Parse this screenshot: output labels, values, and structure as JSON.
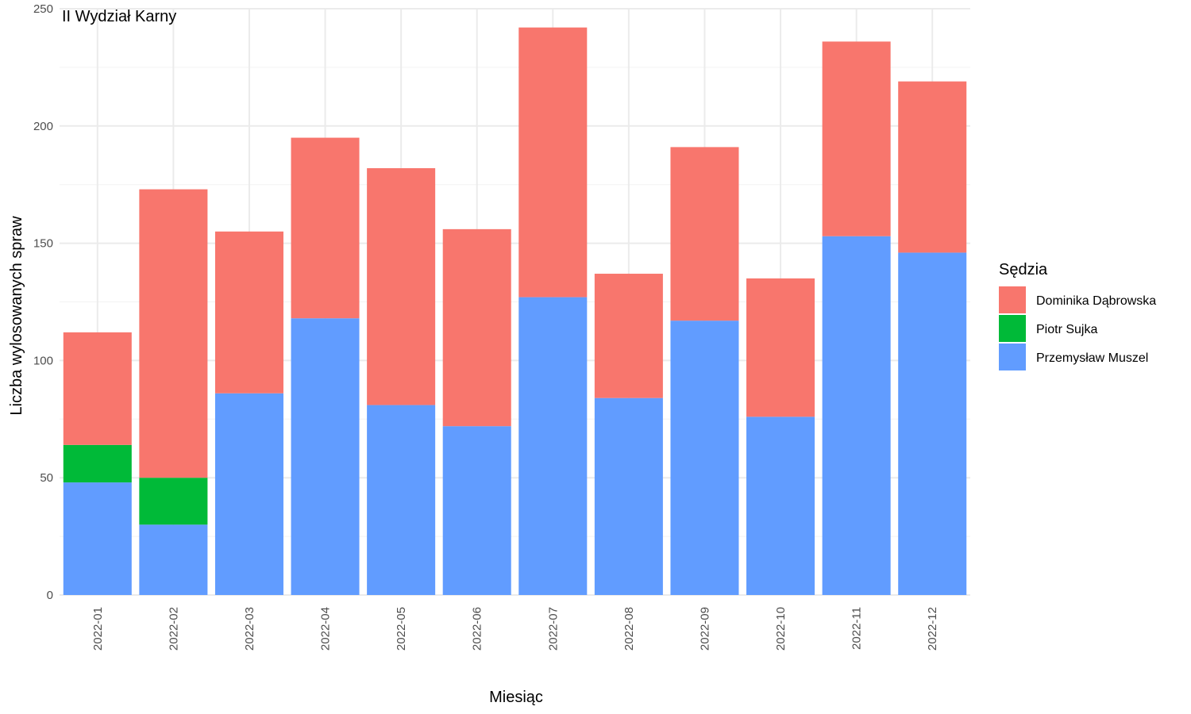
{
  "chart_data": {
    "type": "bar",
    "stacked": true,
    "title": "II Wydział Karny",
    "xlabel": "Miesiąc",
    "ylabel": "Liczba wylosowanych spraw",
    "ylim": [
      0,
      250
    ],
    "yticks": [
      0,
      50,
      100,
      150,
      200,
      250
    ],
    "grid": true,
    "legend": {
      "title": "Sędzia",
      "placement": "right"
    },
    "categories": [
      "2022-01",
      "2022-02",
      "2022-03",
      "2022-04",
      "2022-05",
      "2022-06",
      "2022-07",
      "2022-08",
      "2022-09",
      "2022-10",
      "2022-11",
      "2022-12"
    ],
    "series": [
      {
        "name": "Przemysław Muszel",
        "color": "#619CFF",
        "values": [
          48,
          30,
          86,
          118,
          81,
          72,
          127,
          84,
          117,
          76,
          153,
          146
        ]
      },
      {
        "name": "Piotr Sujka",
        "color": "#00BA38",
        "values": [
          16,
          20,
          0,
          0,
          0,
          0,
          0,
          0,
          0,
          0,
          0,
          0
        ]
      },
      {
        "name": "Dominika Dąbrowska",
        "color": "#F8766D",
        "values": [
          48,
          123,
          69,
          77,
          101,
          84,
          115,
          53,
          74,
          59,
          83,
          73
        ]
      }
    ],
    "legend_order": [
      "Dominika Dąbrowska",
      "Piotr Sujka",
      "Przemysław Muszel"
    ]
  }
}
